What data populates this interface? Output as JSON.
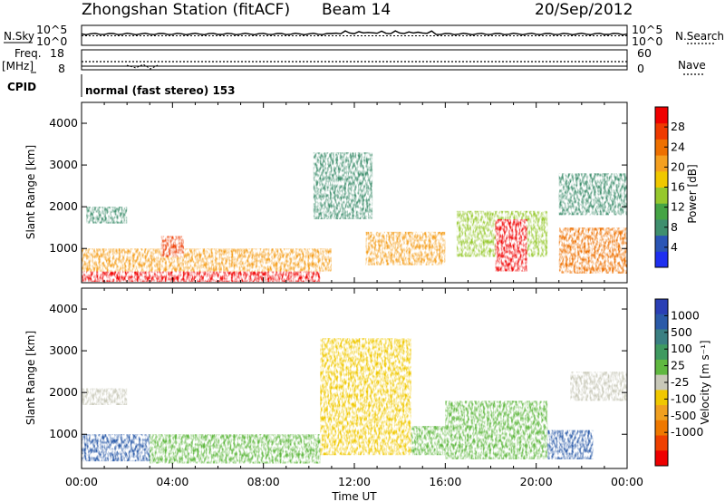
{
  "header": {
    "station": "Zhongshan Station (fitACF)",
    "beam": "Beam 14",
    "date": "20/Sep/2012"
  },
  "strips": {
    "nsky_label": "N.Sky",
    "nsky_tick_top": "10^5",
    "nsky_tick_bottom": "10^0",
    "nsearch_label": "N.Search",
    "freq_label_1": "Freq.",
    "freq_label_2": "[MHz]",
    "freq_tick_top": "18",
    "freq_tick_bottom": "8",
    "nave_label": "Nave",
    "nave_tick_top": "60",
    "nave_tick_bottom": "0",
    "cpid_label": "CPID",
    "cpid_value": "normal (fast stereo) 153"
  },
  "colorbars": {
    "power": {
      "label": "Power [dB]",
      "ticks": [
        "4",
        "8",
        "12",
        "16",
        "20",
        "24",
        "28"
      ],
      "colors": [
        "#1e2ff0",
        "#2a55b5",
        "#3f8f6e",
        "#45a445",
        "#96c82d",
        "#f0c800",
        "#f5a020",
        "#ee7000",
        "#ee3a00",
        "#f00000"
      ]
    },
    "velocity": {
      "label": "Velocity [m s⁻¹]",
      "ticks": [
        "1000",
        "500",
        "100",
        "25",
        "-25",
        "-100",
        "-500",
        "-1000"
      ],
      "colors": [
        "#2a3fb5",
        "#2a5aa8",
        "#3a7f82",
        "#3f9a60",
        "#60b840",
        "#c8c8b8",
        "#f0c800",
        "#f0a020",
        "#ee7800",
        "#ee4000",
        "#ee0000"
      ]
    }
  },
  "chart_data": [
    {
      "type": "heatmap",
      "title": "",
      "xlabel": "Time UT",
      "ylabel": "Slant Range [km]",
      "xlim": [
        "00:00",
        "24:00"
      ],
      "ylim": [
        180,
        4500
      ],
      "x_ticks": [
        "00:00",
        "04:00",
        "08:00",
        "12:00",
        "16:00",
        "20:00",
        "00:00"
      ],
      "y_ticks": [
        1000,
        2000,
        3000,
        4000
      ],
      "colorbar": "Power [dB]",
      "clim": [
        0,
        30
      ],
      "regions": [
        {
          "t": [
            0,
            10.5
          ],
          "r": [
            200,
            450
          ],
          "value": 28
        },
        {
          "t": [
            0,
            11.0
          ],
          "r": [
            450,
            1000
          ],
          "value": 18
        },
        {
          "t": [
            0.2,
            2.0
          ],
          "r": [
            1600,
            2000
          ],
          "value": 8
        },
        {
          "t": [
            3.5,
            4.5
          ],
          "r": [
            800,
            1300
          ],
          "value": 24
        },
        {
          "t": [
            10.2,
            12.8
          ],
          "r": [
            1700,
            3300
          ],
          "value": 6
        },
        {
          "t": [
            12.5,
            16.0
          ],
          "r": [
            600,
            1400
          ],
          "value": 20
        },
        {
          "t": [
            16.5,
            20.5
          ],
          "r": [
            800,
            1900
          ],
          "value": 12
        },
        {
          "t": [
            18.2,
            19.6
          ],
          "r": [
            450,
            1700
          ],
          "value": 28
        },
        {
          "t": [
            21.0,
            24.0
          ],
          "r": [
            400,
            1500
          ],
          "value": 22
        },
        {
          "t": [
            21.0,
            24.0
          ],
          "r": [
            1800,
            2800
          ],
          "value": 7
        }
      ]
    },
    {
      "type": "heatmap",
      "title": "",
      "xlabel": "Time UT",
      "ylabel": "Slant Range [km]",
      "xlim": [
        "00:00",
        "24:00"
      ],
      "ylim": [
        180,
        4500
      ],
      "x_ticks": [
        "00:00",
        "04:00",
        "08:00",
        "12:00",
        "16:00",
        "20:00",
        "00:00"
      ],
      "y_ticks": [
        1000,
        2000,
        3000,
        4000
      ],
      "colorbar": "Velocity [m s⁻¹]",
      "clim": [
        -1000,
        1000
      ],
      "regions": [
        {
          "t": [
            0,
            3.0
          ],
          "r": [
            350,
            1000
          ],
          "value": 800
        },
        {
          "t": [
            0,
            2.0
          ],
          "r": [
            1700,
            2100
          ],
          "value": 0
        },
        {
          "t": [
            3.0,
            10.5
          ],
          "r": [
            300,
            1000
          ],
          "value": 200
        },
        {
          "t": [
            10.5,
            14.5
          ],
          "r": [
            500,
            3300
          ],
          "value": -150
        },
        {
          "t": [
            14.5,
            16.0
          ],
          "r": [
            500,
            1200
          ],
          "value": 150
        },
        {
          "t": [
            16.0,
            20.5
          ],
          "r": [
            400,
            1800
          ],
          "value": 100
        },
        {
          "t": [
            20.5,
            22.5
          ],
          "r": [
            400,
            1100
          ],
          "value": 800
        },
        {
          "t": [
            21.5,
            24.0
          ],
          "r": [
            1800,
            2500
          ],
          "value": 0
        }
      ]
    },
    {
      "type": "line",
      "name_ref": "N.Sky",
      "xlim": [
        "00:00",
        "24:00"
      ],
      "note_values": "noise level approx 10^2.6, rising near 12:00-15:00"
    }
  ]
}
